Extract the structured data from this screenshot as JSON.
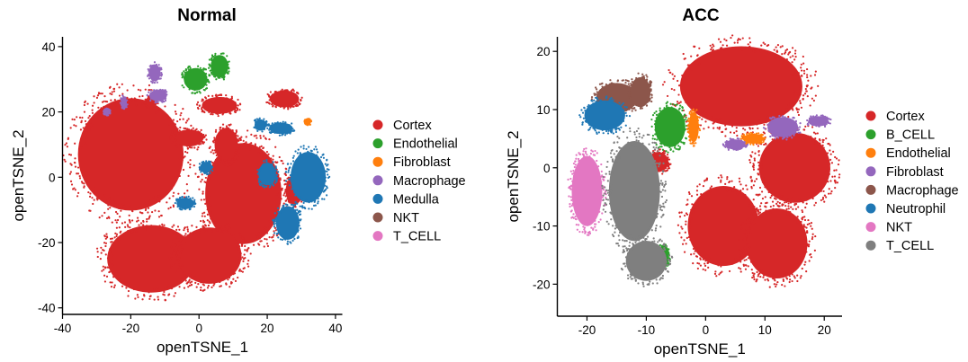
{
  "chart_data": [
    {
      "type": "scatter",
      "title": "Normal",
      "xlabel": "openTSNE_1",
      "ylabel": "openTSNE_2",
      "xlim": [
        -40,
        42
      ],
      "ylim": [
        -42,
        43
      ],
      "xticks": [
        -40,
        -20,
        0,
        20,
        40
      ],
      "yticks": [
        -40,
        -20,
        0,
        20,
        40
      ],
      "grid": false,
      "legend_position": "right",
      "series": [
        {
          "name": "Cortex",
          "color": "#D62728",
          "clusters": [
            {
              "cx": -20,
              "cy": 7,
              "rx": 18,
              "ry": 20
            },
            {
              "cx": -14,
              "cy": -25,
              "rx": 15,
              "ry": 12
            },
            {
              "cx": 13,
              "cy": -5,
              "rx": 13,
              "ry": 18
            },
            {
              "cx": 3,
              "cy": -24,
              "rx": 11,
              "ry": 10
            },
            {
              "cx": 25,
              "cy": 24,
              "rx": 5,
              "ry": 3
            },
            {
              "cx": 6,
              "cy": 22,
              "rx": 6,
              "ry": 3
            },
            {
              "cx": 8,
              "cy": 10,
              "rx": 4,
              "ry": 6
            },
            {
              "cx": -3,
              "cy": 12,
              "rx": 5,
              "ry": 3
            },
            {
              "cx": 28,
              "cy": -4,
              "rx": 3,
              "ry": 5
            },
            {
              "cx": -14,
              "cy": 23,
              "rx": 2,
              "ry": 2
            }
          ]
        },
        {
          "name": "Endothelial",
          "color": "#2CA02C",
          "clusters": [
            {
              "cx": -1,
              "cy": 30,
              "rx": 4,
              "ry": 4
            },
            {
              "cx": 6,
              "cy": 34,
              "rx": 3,
              "ry": 4
            }
          ]
        },
        {
          "name": "Fibroblast",
          "color": "#FF7F0E",
          "clusters": [
            {
              "cx": 32,
              "cy": 17,
              "rx": 1,
              "ry": 1
            }
          ]
        },
        {
          "name": "Macrophage",
          "color": "#9467BD",
          "clusters": [
            {
              "cx": -13,
              "cy": 32,
              "rx": 2,
              "ry": 3
            },
            {
              "cx": -12,
              "cy": 25,
              "rx": 3,
              "ry": 2
            },
            {
              "cx": -22,
              "cy": 23,
              "rx": 1,
              "ry": 2
            },
            {
              "cx": -27,
              "cy": 20,
              "rx": 1,
              "ry": 1
            }
          ]
        },
        {
          "name": "Medulla",
          "color": "#1F77B4",
          "clusters": [
            {
              "cx": 32,
              "cy": 0,
              "rx": 6,
              "ry": 9
            },
            {
              "cx": 26,
              "cy": -14,
              "rx": 4,
              "ry": 6
            },
            {
              "cx": 20,
              "cy": 1,
              "rx": 3,
              "ry": 4
            },
            {
              "cx": 24,
              "cy": 15,
              "rx": 4,
              "ry": 2
            },
            {
              "cx": 18,
              "cy": 16,
              "rx": 2,
              "ry": 2
            },
            {
              "cx": -4,
              "cy": -8,
              "rx": 3,
              "ry": 2
            },
            {
              "cx": 2,
              "cy": 3,
              "rx": 2,
              "ry": 2
            }
          ]
        },
        {
          "name": "NKT",
          "color": "#8C564B",
          "clusters": []
        },
        {
          "name": "T_CELL",
          "color": "#E377C2",
          "clusters": []
        }
      ]
    },
    {
      "type": "scatter",
      "title": "ACC",
      "xlabel": "openTSNE_1",
      "ylabel": "openTSNE_2",
      "xlim": [
        -25,
        23
      ],
      "ylim": [
        -25.5,
        22.5
      ],
      "xticks": [
        -20,
        -10,
        0,
        10,
        20
      ],
      "yticks": [
        -20,
        -10,
        0,
        10,
        20
      ],
      "grid": false,
      "legend_position": "right",
      "series": [
        {
          "name": "Cortex",
          "color": "#D62728",
          "clusters": [
            {
              "cx": 6,
              "cy": 14,
              "rx": 12,
              "ry": 8
            },
            {
              "cx": 15,
              "cy": 0,
              "rx": 7,
              "ry": 7
            },
            {
              "cx": 3,
              "cy": -10,
              "rx": 7,
              "ry": 8
            },
            {
              "cx": 12,
              "cy": -13,
              "rx": 6,
              "ry": 7
            },
            {
              "cx": -8,
              "cy": 1,
              "rx": 2,
              "ry": 2
            }
          ]
        },
        {
          "name": "B_CELL",
          "color": "#2CA02C",
          "clusters": [
            {
              "cx": -6,
              "cy": 7,
              "rx": 3,
              "ry": 4
            },
            {
              "cx": -7,
              "cy": -15,
              "rx": 1,
              "ry": 2
            }
          ]
        },
        {
          "name": "Endothelial",
          "color": "#FF7F0E",
          "clusters": [
            {
              "cx": -2,
              "cy": 7,
              "rx": 1,
              "ry": 3
            },
            {
              "cx": 8,
              "cy": 5,
              "rx": 2,
              "ry": 1
            }
          ]
        },
        {
          "name": "Fibroblast",
          "color": "#9467BD",
          "clusters": [
            {
              "cx": 13,
              "cy": 7,
              "rx": 3,
              "ry": 2
            },
            {
              "cx": 19,
              "cy": 8,
              "rx": 2,
              "ry": 1
            },
            {
              "cx": 5,
              "cy": 4,
              "rx": 2,
              "ry": 1
            }
          ]
        },
        {
          "name": "Macrophage",
          "color": "#8C564B",
          "clusters": [
            {
              "cx": -15,
              "cy": 12,
              "rx": 4,
              "ry": 3
            },
            {
              "cx": -11,
              "cy": 13,
              "rx": 2,
              "ry": 3
            }
          ]
        },
        {
          "name": "Neutrophil",
          "color": "#1F77B4",
          "clusters": [
            {
              "cx": -17,
              "cy": 9,
              "rx": 4,
              "ry": 3
            }
          ]
        },
        {
          "name": "NKT",
          "color": "#E377C2",
          "clusters": [
            {
              "cx": -20,
              "cy": -4,
              "rx": 3,
              "ry": 7
            }
          ]
        },
        {
          "name": "T_CELL",
          "color": "#7F7F7F",
          "clusters": [
            {
              "cx": -12,
              "cy": -4,
              "rx": 5,
              "ry": 10
            },
            {
              "cx": -10,
              "cy": -16,
              "rx": 4,
              "ry": 4
            }
          ]
        }
      ]
    }
  ]
}
